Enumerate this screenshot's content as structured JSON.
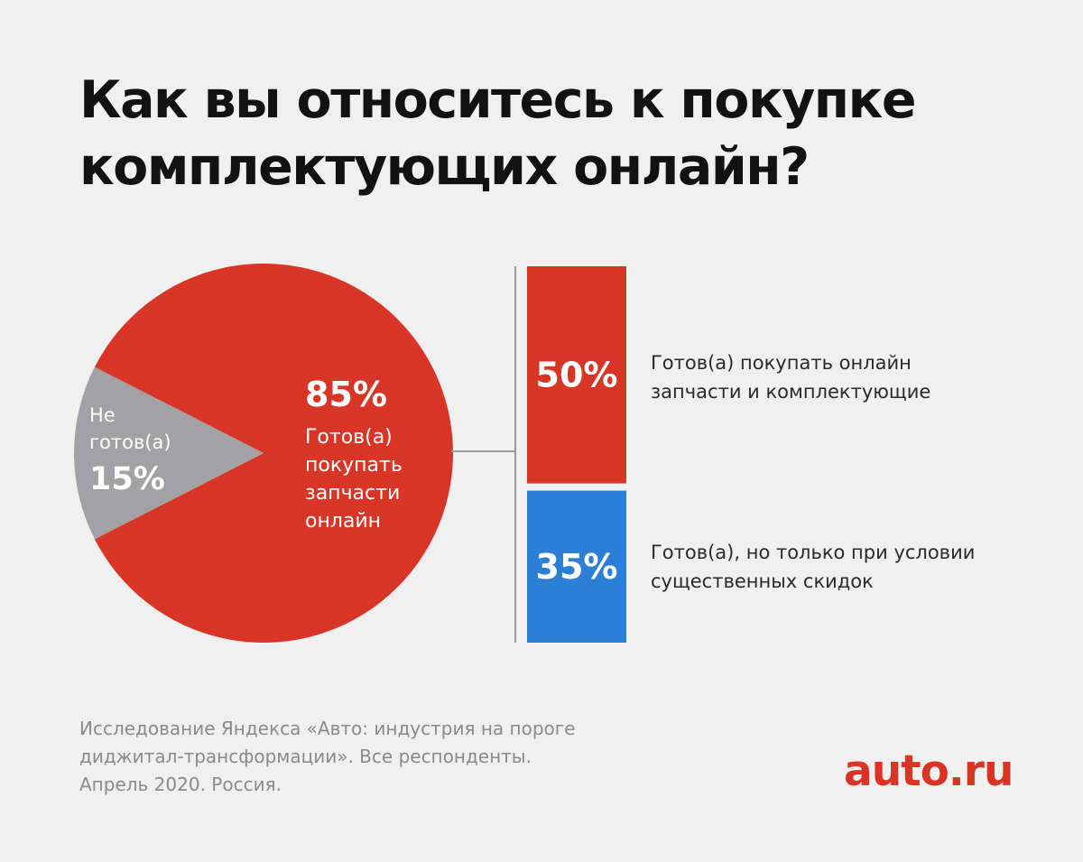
{
  "title_lines": [
    "Как вы относитесь к покупке",
    "комплектующих онлайн?"
  ],
  "chart_data": {
    "type": "pie",
    "slices": [
      {
        "value": 85,
        "label": "85%",
        "caption_lines": [
          "Готов(а)",
          "покупать",
          "запчасти",
          "онлайн"
        ]
      },
      {
        "value": 15,
        "label": "15%",
        "caption_lines": [
          "Не",
          "готов(а)"
        ]
      }
    ],
    "breakdown": {
      "type": "stacked-bar",
      "parts": [
        {
          "value": 50,
          "label": "50%",
          "description_lines": [
            "Готов(а) покупать онлайн",
            "запчасти и комплектующие"
          ]
        },
        {
          "value": 35,
          "label": "35%",
          "description_lines": [
            "Готов(а), но только при условии",
            "существенных скидок"
          ]
        }
      ]
    }
  },
  "colors": {
    "red": "#d93526",
    "blue": "#2b80d6",
    "gray": "#a2a2a4",
    "background": "#f0f0f0"
  },
  "source_lines": [
    "Исследование Яндекса «Авто: индустрия на пороге",
    "диджитал-трансформации». Все респонденты.",
    "Апрель 2020. Россия."
  ],
  "logo_text": "auto.ru"
}
